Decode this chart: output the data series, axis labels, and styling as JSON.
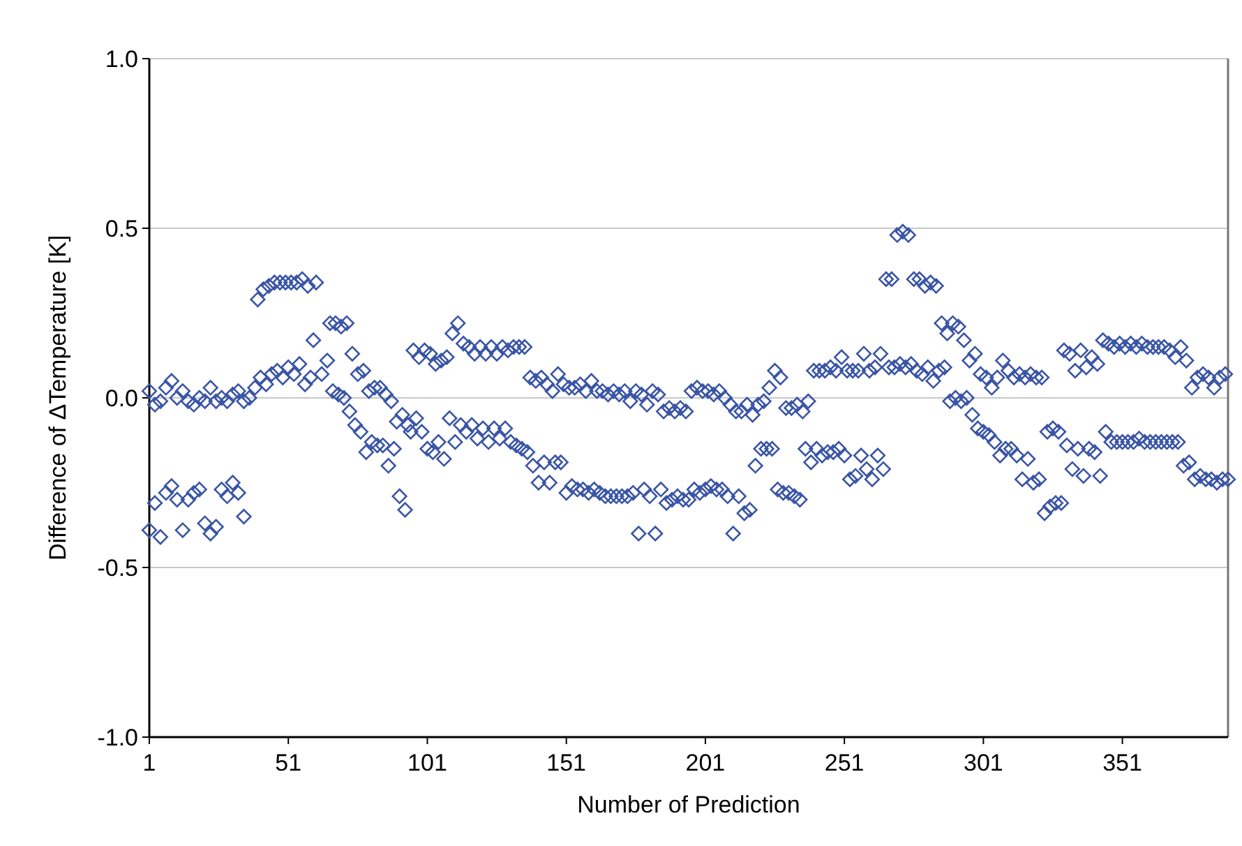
{
  "chart_data": {
    "type": "scatter",
    "xlabel": "Number of Prediction",
    "ylabel": "Difference of ΔTemperature [K]",
    "xlim": [
      1,
      389
    ],
    "xticks": [
      1,
      51,
      101,
      151,
      201,
      251,
      301,
      351
    ],
    "ylim": [
      -1,
      1
    ],
    "yticks": [
      {
        "value": -1,
        "label": "-1.0"
      },
      {
        "value": -0.5,
        "label": "-0.5"
      },
      {
        "value": 0,
        "label": "0.0"
      },
      {
        "value": 0.5,
        "label": "0.5"
      },
      {
        "value": 1,
        "label": "1.0"
      }
    ],
    "grid": "y",
    "marker": "diamond",
    "series": [
      {
        "color": "#3a55a6",
        "x": [
          1,
          1,
          3,
          3,
          5,
          5,
          7,
          7,
          9,
          9,
          11,
          11,
          13,
          13,
          15,
          15,
          17,
          17,
          19,
          19,
          21,
          21,
          23,
          23,
          25,
          25,
          27,
          27,
          29,
          29,
          31,
          31,
          33,
          33,
          35,
          35,
          37,
          39,
          40,
          41,
          42,
          43,
          44,
          45,
          46,
          47,
          48,
          49,
          50,
          51,
          52,
          53,
          54,
          55,
          56,
          57,
          58,
          59,
          60,
          61,
          63,
          65,
          66,
          67,
          68,
          69,
          70,
          71,
          72,
          73,
          74,
          75,
          76,
          77,
          78,
          79,
          80,
          81,
          82,
          83,
          84,
          85,
          86,
          87,
          88,
          89,
          90,
          91,
          92,
          93,
          94,
          95,
          96,
          97,
          98,
          99,
          100,
          101,
          102,
          103,
          104,
          105,
          106,
          107,
          108,
          109,
          110,
          111,
          112,
          113,
          114,
          115,
          116,
          117,
          118,
          119,
          120,
          121,
          122,
          123,
          124,
          125,
          126,
          127,
          128,
          129,
          130,
          131,
          132,
          133,
          134,
          135,
          136,
          137,
          138,
          139,
          140,
          141,
          142,
          143,
          144,
          145,
          146,
          147,
          148,
          149,
          150,
          151,
          152,
          153,
          154,
          155,
          156,
          157,
          158,
          159,
          160,
          161,
          162,
          163,
          164,
          165,
          166,
          167,
          168,
          169,
          170,
          171,
          172,
          173,
          174,
          175,
          176,
          177,
          178,
          179,
          180,
          181,
          182,
          183,
          184,
          185,
          186,
          187,
          188,
          189,
          190,
          191,
          192,
          193,
          194,
          195,
          196,
          197,
          198,
          199,
          200,
          201,
          202,
          203,
          204,
          205,
          206,
          207,
          208,
          209,
          210,
          211,
          212,
          213,
          214,
          215,
          216,
          217,
          218,
          219,
          220,
          221,
          222,
          223,
          224,
          225,
          226,
          227,
          228,
          229,
          230,
          231,
          232,
          233,
          234,
          235,
          236,
          237,
          238,
          239,
          240,
          241,
          242,
          243,
          244,
          245,
          246,
          247,
          248,
          249,
          250,
          251,
          252,
          253,
          254,
          255,
          256,
          257,
          258,
          259,
          260,
          261,
          262,
          263,
          264,
          265,
          266,
          267,
          268,
          269,
          270,
          271,
          272,
          273,
          274,
          275,
          276,
          277,
          278,
          279,
          280,
          281,
          282,
          283,
          284,
          285,
          286,
          287,
          288,
          289,
          290,
          291,
          292,
          293,
          294,
          295,
          296,
          297,
          298,
          299,
          300,
          301,
          302,
          303,
          304,
          305,
          306,
          307,
          308,
          309,
          310,
          311,
          312,
          313,
          314,
          315,
          316,
          317,
          318,
          319,
          320,
          321,
          322,
          323,
          324,
          325,
          326,
          327,
          328,
          329,
          330,
          331,
          332,
          333,
          334,
          335,
          336,
          337,
          338,
          339,
          340,
          341,
          342,
          343,
          344,
          345,
          346,
          347,
          348,
          349,
          350,
          351,
          352,
          353,
          354,
          355,
          356,
          357,
          358,
          359,
          360,
          361,
          362,
          363,
          364,
          365,
          366,
          367,
          368,
          369,
          370,
          371,
          372,
          373,
          374,
          375,
          376,
          377,
          378,
          379,
          380,
          381,
          382,
          383,
          384,
          385,
          386,
          387,
          388,
          389
        ],
        "values": [
          0.02,
          -0.39,
          -0.02,
          -0.31,
          -0.01,
          -0.41,
          0.03,
          -0.28,
          0.05,
          -0.26,
          0.0,
          -0.3,
          0.02,
          -0.39,
          -0.01,
          -0.3,
          -0.02,
          -0.28,
          0.0,
          -0.27,
          -0.01,
          -0.37,
          0.03,
          -0.4,
          -0.01,
          -0.38,
          0.0,
          -0.27,
          -0.01,
          -0.29,
          0.01,
          -0.25,
          0.02,
          -0.28,
          -0.01,
          -0.35,
          0.0,
          0.03,
          0.29,
          0.06,
          0.32,
          0.04,
          0.33,
          0.07,
          0.34,
          0.08,
          0.34,
          0.06,
          0.34,
          0.09,
          0.34,
          0.07,
          0.34,
          0.1,
          0.35,
          0.04,
          0.33,
          0.06,
          0.17,
          0.34,
          0.07,
          0.11,
          0.22,
          0.02,
          0.22,
          0.01,
          0.21,
          0.0,
          0.22,
          -0.04,
          0.13,
          -0.08,
          0.07,
          -0.1,
          0.08,
          -0.16,
          0.02,
          -0.13,
          0.03,
          -0.14,
          0.03,
          -0.14,
          0.01,
          -0.2,
          -0.01,
          -0.15,
          -0.07,
          -0.29,
          -0.05,
          -0.33,
          -0.08,
          -0.1,
          0.14,
          -0.06,
          0.12,
          -0.1,
          0.14,
          -0.15,
          0.13,
          -0.16,
          0.1,
          -0.13,
          0.11,
          -0.18,
          0.12,
          -0.06,
          0.19,
          -0.13,
          0.22,
          -0.08,
          0.16,
          -0.1,
          0.15,
          -0.08,
          0.13,
          -0.12,
          0.15,
          -0.09,
          0.13,
          -0.13,
          0.15,
          -0.09,
          0.13,
          -0.12,
          0.15,
          -0.09,
          0.14,
          -0.13,
          0.15,
          -0.14,
          0.15,
          -0.15,
          0.15,
          -0.16,
          0.06,
          -0.2,
          0.05,
          -0.25,
          0.06,
          -0.19,
          0.04,
          -0.25,
          0.02,
          -0.19,
          0.07,
          -0.19,
          0.04,
          -0.28,
          0.03,
          -0.26,
          0.03,
          -0.27,
          0.04,
          -0.27,
          0.02,
          -0.28,
          0.05,
          -0.27,
          0.02,
          -0.28,
          0.02,
          -0.29,
          0.01,
          -0.29,
          0.02,
          -0.29,
          0.01,
          -0.29,
          0.02,
          -0.29,
          -0.01,
          -0.28,
          0.02,
          -0.4,
          0.01,
          -0.27,
          -0.02,
          -0.29,
          0.02,
          -0.4,
          0.01,
          -0.27,
          -0.04,
          -0.31,
          -0.03,
          -0.3,
          -0.04,
          -0.29,
          -0.03,
          -0.3,
          -0.04,
          -0.3,
          0.02,
          -0.27,
          0.03,
          -0.28,
          0.02,
          -0.27,
          0.02,
          -0.26,
          0.01,
          -0.27,
          0.02,
          -0.27,
          0.0,
          -0.29,
          -0.02,
          -0.4,
          -0.04,
          -0.29,
          -0.04,
          -0.34,
          -0.02,
          -0.33,
          -0.05,
          -0.2,
          -0.02,
          -0.15,
          -0.01,
          -0.15,
          0.03,
          -0.15,
          0.08,
          -0.27,
          0.06,
          -0.28,
          -0.03,
          -0.28,
          -0.03,
          -0.29,
          -0.02,
          -0.3,
          -0.04,
          -0.15,
          -0.01,
          -0.19,
          0.08,
          -0.15,
          0.08,
          -0.17,
          0.08,
          -0.16,
          0.09,
          -0.16,
          0.08,
          -0.15,
          0.12,
          -0.17,
          0.08,
          -0.24,
          0.08,
          -0.23,
          0.08,
          -0.17,
          0.13,
          -0.21,
          0.08,
          -0.24,
          0.09,
          -0.17,
          0.13,
          -0.21,
          0.35,
          0.09,
          0.35,
          0.09,
          0.48,
          0.1,
          0.49,
          0.09,
          0.48,
          0.1,
          0.35,
          0.08,
          0.35,
          0.07,
          0.33,
          0.09,
          0.34,
          0.05,
          0.33,
          0.08,
          0.22,
          0.09,
          0.19,
          -0.01,
          0.22,
          0.0,
          0.21,
          -0.01,
          0.17,
          0.0,
          0.11,
          -0.05,
          0.13,
          -0.09,
          0.07,
          -0.1,
          0.06,
          -0.11,
          0.03,
          -0.13,
          0.06,
          -0.17,
          0.11,
          -0.15,
          0.08,
          -0.15,
          0.06,
          -0.17,
          0.07,
          -0.24,
          0.06,
          -0.18,
          0.07,
          -0.25,
          0.06,
          -0.24,
          0.06,
          -0.34,
          -0.1,
          -0.32,
          -0.09,
          -0.31,
          -0.1,
          -0.31,
          0.14,
          -0.14,
          0.13,
          -0.21,
          0.08,
          -0.15,
          0.14,
          -0.23,
          0.09,
          -0.15,
          0.12,
          -0.16,
          0.1,
          -0.23,
          0.17,
          -0.1,
          0.16,
          -0.13,
          0.15,
          -0.13,
          0.16,
          -0.13,
          0.15,
          -0.13,
          0.16,
          -0.13,
          0.15,
          -0.12,
          0.16,
          -0.13,
          0.15,
          -0.13,
          0.15,
          -0.13,
          0.15,
          -0.13,
          0.15,
          -0.13,
          0.14,
          -0.13,
          0.12,
          -0.13,
          0.15,
          -0.2,
          0.11,
          -0.19,
          0.03,
          -0.24,
          0.06,
          -0.23,
          0.07,
          -0.24,
          0.06,
          -0.24,
          0.03,
          -0.25,
          0.06,
          -0.24,
          0.07,
          -0.24
        ]
      }
    ]
  }
}
